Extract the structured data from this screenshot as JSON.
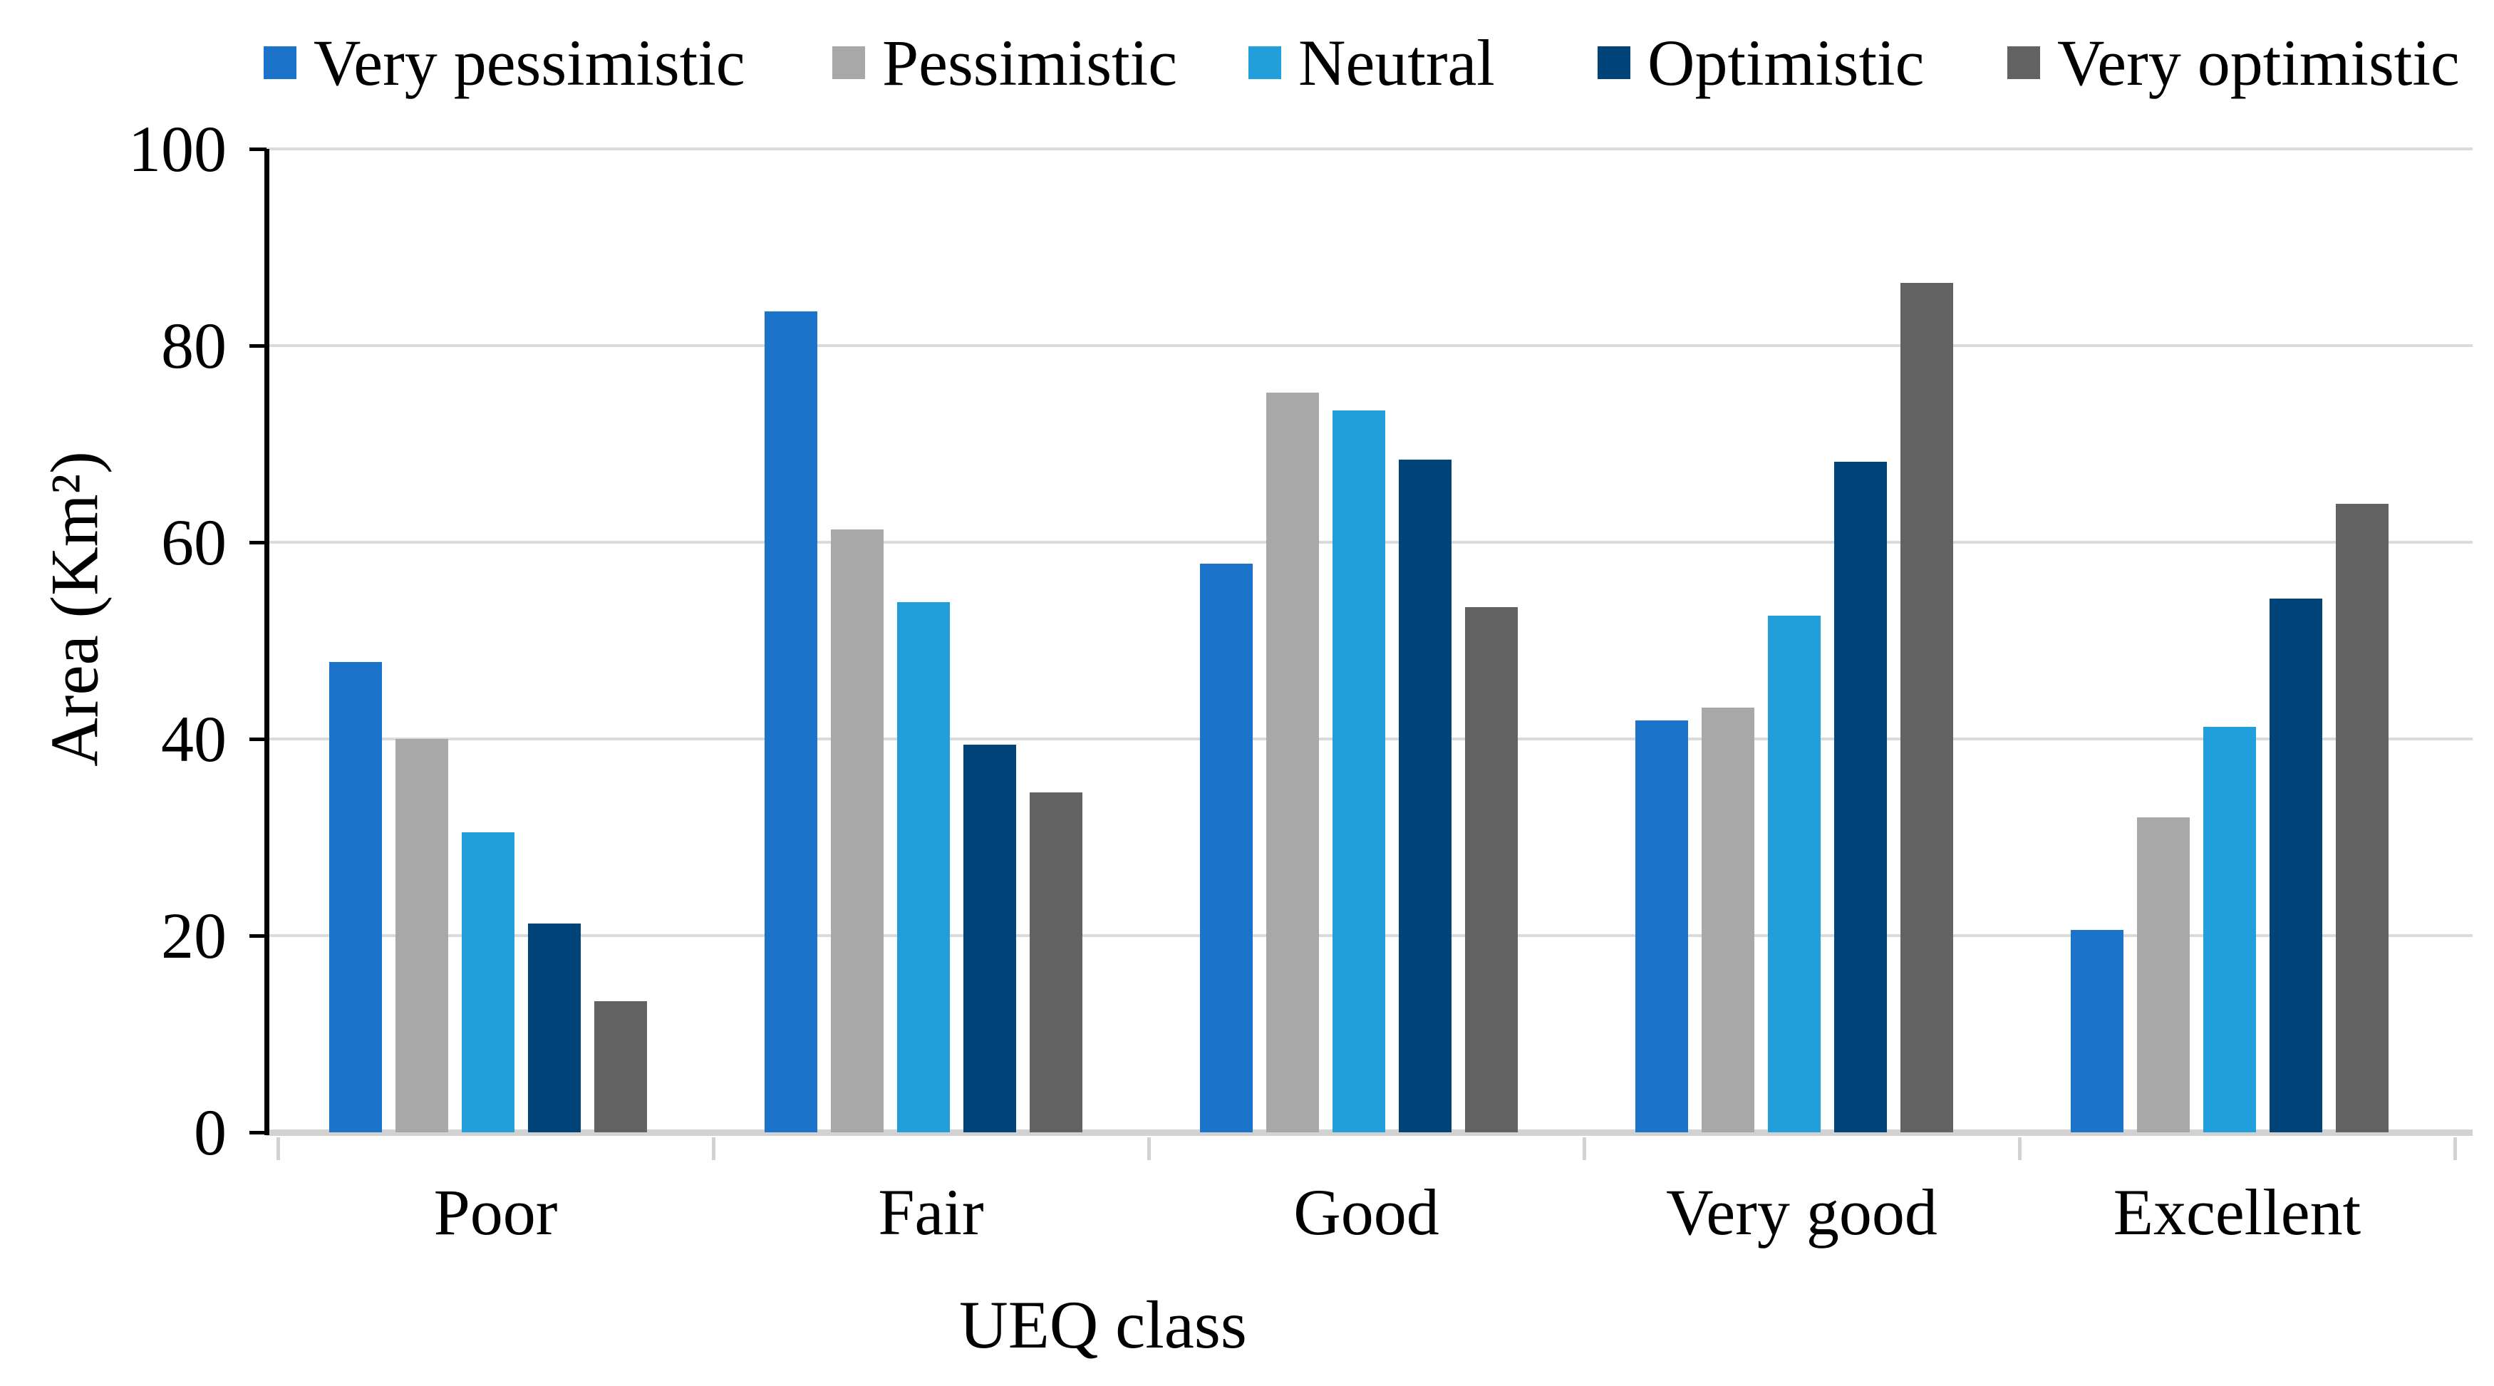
{
  "figure": {
    "background": "#ffffff"
  },
  "legend": {
    "position": "top",
    "items": [
      {
        "label": "Very pessimistic",
        "color": "#1B74C9",
        "x": 370
      },
      {
        "label": "Pessimistic",
        "color": "#A8A8A8",
        "x": 1168
      },
      {
        "label": "Neutral",
        "color": "#219FDB",
        "x": 1752
      },
      {
        "label": "Optimistic",
        "color": "#00447A",
        "x": 2242
      },
      {
        "label": "Very optimistic",
        "color": "#626262",
        "x": 2817
      }
    ]
  },
  "y_axis": {
    "title": "Area (Km²)",
    "ticks": [
      0,
      20,
      40,
      60,
      80,
      100
    ],
    "min": 0,
    "max": 100
  },
  "x_axis": {
    "title": "UEQ class",
    "categories": [
      "Poor",
      "Fair",
      "Good",
      "Very good",
      "Excellent"
    ]
  },
  "chart_data": {
    "type": "bar",
    "title": "",
    "xlabel": "UEQ class",
    "ylabel": "Area (Km²)",
    "ylim": [
      0,
      100
    ],
    "grid": true,
    "legend_position": "top",
    "categories": [
      "Poor",
      "Fair",
      "Good",
      "Very good",
      "Excellent"
    ],
    "series": [
      {
        "name": "Very pessimistic",
        "color": "#1B74C9",
        "values": [
          47.8,
          83.5,
          57.8,
          41.9,
          20.6
        ]
      },
      {
        "name": "Pessimistic",
        "color": "#A8A8A8",
        "values": [
          40.0,
          61.3,
          75.2,
          43.2,
          32.0
        ]
      },
      {
        "name": "Neutral",
        "color": "#219FDB",
        "values": [
          30.5,
          53.9,
          73.4,
          52.5,
          41.2
        ]
      },
      {
        "name": "Optimistic",
        "color": "#00447A",
        "values": [
          21.2,
          39.4,
          68.4,
          68.2,
          54.3
        ]
      },
      {
        "name": "Very optimistic",
        "color": "#626262",
        "values": [
          13.3,
          34.6,
          53.4,
          86.4,
          63.9
        ]
      }
    ]
  }
}
